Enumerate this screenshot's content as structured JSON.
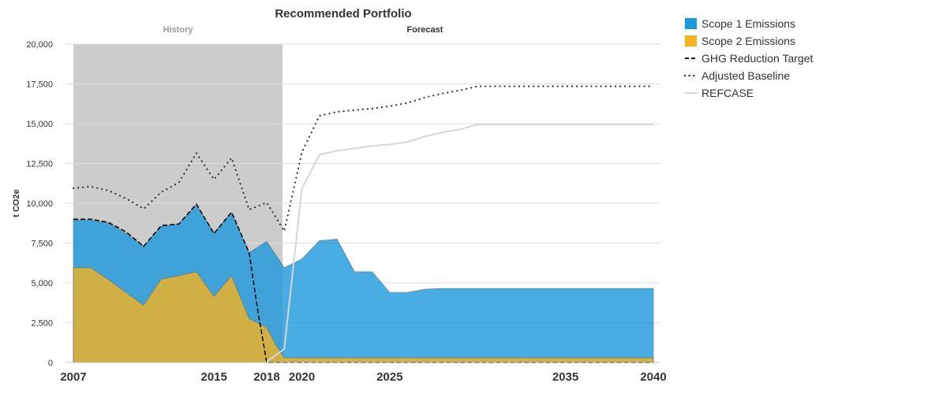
{
  "chart_data": {
    "type": "area",
    "title": "Recommended Portfolio",
    "ylabel": "t CO2e",
    "xlabel": "",
    "xlim": [
      2007,
      2040
    ],
    "ylim": [
      0,
      20000
    ],
    "yticks": [
      0,
      2500,
      5000,
      7500,
      10000,
      12500,
      15000,
      17500,
      20000
    ],
    "ytick_labels": [
      "0",
      "2,500",
      "5,000",
      "7,500",
      "10,000",
      "12,500",
      "15,000",
      "17,500",
      "20,000"
    ],
    "xticks": [
      2007,
      2015,
      2018,
      2020,
      2025,
      2035,
      2040
    ],
    "xtick_labels": [
      "2007",
      "2015",
      "2018",
      "2020",
      "2025",
      "2035",
      "2040"
    ],
    "grid": true,
    "legend_position": "right",
    "regions": [
      {
        "label": "History",
        "from": 2007,
        "to": 2018.9,
        "color": "#cccccc",
        "label_color": "#999999"
      },
      {
        "label": "Forecast",
        "label_at": 2027,
        "label_color": "#333333"
      }
    ],
    "series": [
      {
        "name": "Scope 2 Emissions",
        "kind": "area",
        "color": "#f5b31f",
        "points": [
          [
            2007,
            5950
          ],
          [
            2008,
            5950
          ],
          [
            2009,
            5200
          ],
          [
            2010,
            4400
          ],
          [
            2011,
            3600
          ],
          [
            2012,
            5250
          ],
          [
            2013,
            5450
          ],
          [
            2014,
            5700
          ],
          [
            2015,
            4150
          ],
          [
            2016,
            5450
          ],
          [
            2017,
            2750
          ],
          [
            2018,
            2200
          ],
          [
            2018.5,
            1150
          ],
          [
            2019,
            300
          ],
          [
            2020,
            300
          ],
          [
            2025,
            300
          ],
          [
            2030,
            300
          ],
          [
            2035,
            300
          ],
          [
            2040,
            300
          ]
        ]
      },
      {
        "name": "Scope 1 Emissions",
        "kind": "area",
        "color": "#1b98dc",
        "points": [
          [
            2007,
            8950
          ],
          [
            2008,
            8950
          ],
          [
            2009,
            8750
          ],
          [
            2010,
            8100
          ],
          [
            2011,
            7300
          ],
          [
            2012,
            8550
          ],
          [
            2013,
            8700
          ],
          [
            2014,
            9900
          ],
          [
            2015,
            8150
          ],
          [
            2016,
            9400
          ],
          [
            2017,
            6900
          ],
          [
            2018,
            7600
          ],
          [
            2019,
            5950
          ],
          [
            2020,
            6500
          ],
          [
            2021,
            7650
          ],
          [
            2022,
            7750
          ],
          [
            2023,
            5700
          ],
          [
            2024,
            5700
          ],
          [
            2025,
            4400
          ],
          [
            2026,
            4400
          ],
          [
            2027,
            4600
          ],
          [
            2028,
            4650
          ],
          [
            2030,
            4650
          ],
          [
            2035,
            4650
          ],
          [
            2040,
            4650
          ]
        ]
      },
      {
        "name": "GHG Reduction Target",
        "kind": "dashed",
        "color": "#000000",
        "points": [
          [
            2007,
            9000
          ],
          [
            2008,
            9000
          ],
          [
            2009,
            8800
          ],
          [
            2010,
            8200
          ],
          [
            2011,
            7300
          ],
          [
            2012,
            8600
          ],
          [
            2013,
            8700
          ],
          [
            2014,
            9950
          ],
          [
            2015,
            8100
          ],
          [
            2016,
            9450
          ],
          [
            2017,
            6900
          ],
          [
            2017.5,
            3200
          ],
          [
            2018,
            0
          ],
          [
            2019,
            0
          ],
          [
            2020,
            0
          ],
          [
            2025,
            0
          ],
          [
            2030,
            0
          ],
          [
            2035,
            0
          ],
          [
            2040,
            0
          ]
        ]
      },
      {
        "name": "Adjusted Baseline",
        "kind": "dotted",
        "color": "#333333",
        "points": [
          [
            2007,
            10950
          ],
          [
            2008,
            11050
          ],
          [
            2009,
            10800
          ],
          [
            2010,
            10300
          ],
          [
            2011,
            9650
          ],
          [
            2012,
            10700
          ],
          [
            2013,
            11300
          ],
          [
            2014,
            13150
          ],
          [
            2015,
            11500
          ],
          [
            2016,
            12850
          ],
          [
            2017,
            9600
          ],
          [
            2018,
            10050
          ],
          [
            2019,
            8250
          ],
          [
            2020,
            13200
          ],
          [
            2021,
            15500
          ],
          [
            2022,
            15750
          ],
          [
            2023,
            15850
          ],
          [
            2024,
            15950
          ],
          [
            2025,
            16100
          ],
          [
            2026,
            16300
          ],
          [
            2027,
            16650
          ],
          [
            2028,
            16900
          ],
          [
            2029,
            17100
          ],
          [
            2030,
            17350
          ],
          [
            2035,
            17350
          ],
          [
            2040,
            17350
          ]
        ]
      },
      {
        "name": "REFCASE",
        "kind": "line",
        "color": "#d6d6d6",
        "points": [
          [
            2018,
            50
          ],
          [
            2019,
            850
          ],
          [
            2020,
            10900
          ],
          [
            2021,
            13050
          ],
          [
            2022,
            13300
          ],
          [
            2023,
            13450
          ],
          [
            2024,
            13600
          ],
          [
            2025,
            13700
          ],
          [
            2026,
            13850
          ],
          [
            2027,
            14200
          ],
          [
            2028,
            14450
          ],
          [
            2029,
            14650
          ],
          [
            2030,
            14950
          ],
          [
            2035,
            14950
          ],
          [
            2040,
            14950
          ]
        ]
      }
    ],
    "legend_order": [
      "Scope 1 Emissions",
      "Scope 2 Emissions",
      "GHG Reduction Target",
      "Adjusted Baseline",
      "REFCASE"
    ]
  }
}
